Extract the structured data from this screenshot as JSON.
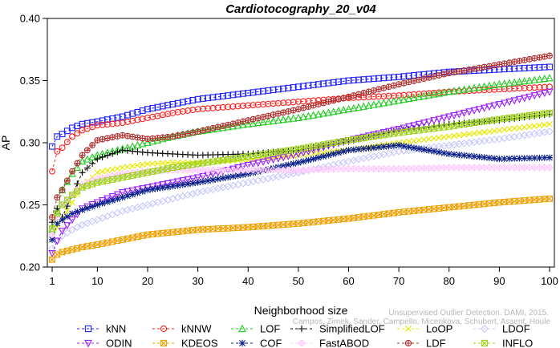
{
  "chart_data": {
    "type": "line",
    "title": "Cardiotocography_20_v04",
    "xlabel": "Neighborhood size",
    "ylabel": "AP",
    "xlim": [
      1,
      100
    ],
    "ylim": [
      0.2,
      0.4
    ],
    "xticks": [
      1,
      10,
      20,
      30,
      40,
      50,
      60,
      70,
      80,
      90,
      100
    ],
    "yticks": [
      0.2,
      0.25,
      0.3,
      0.35,
      0.4
    ],
    "x_knots": [
      1,
      2,
      3,
      5,
      7,
      10,
      15,
      20,
      25,
      30,
      40,
      50,
      60,
      70,
      80,
      90,
      100
    ],
    "legend_position": "bottom",
    "grid": false,
    "watermark": [
      "Unsupervised Outlier Detection. DAMI, 2015.",
      "Campos, Zimek, Sander, Campello, Micenkova, Schubert, Assent, Houle"
    ],
    "series": [
      {
        "name": "kNN",
        "color": "#1f1fff",
        "marker": "square",
        "dash": "3,3",
        "values": [
          0.297,
          0.305,
          0.307,
          0.312,
          0.315,
          0.317,
          0.321,
          0.327,
          0.331,
          0.335,
          0.34,
          0.345,
          0.35,
          0.353,
          0.357,
          0.359,
          0.361
        ]
      },
      {
        "name": "kNNW",
        "color": "#ff1f1f",
        "marker": "circle",
        "dash": "3,3",
        "values": [
          0.277,
          0.293,
          0.296,
          0.305,
          0.31,
          0.314,
          0.316,
          0.32,
          0.324,
          0.327,
          0.33,
          0.333,
          0.336,
          0.338,
          0.341,
          0.343,
          0.345
        ]
      },
      {
        "name": "LOF",
        "color": "#22cc22",
        "marker": "triangle",
        "dash": "3,3",
        "values": [
          0.23,
          0.245,
          0.262,
          0.275,
          0.285,
          0.29,
          0.295,
          0.3,
          0.305,
          0.309,
          0.315,
          0.32,
          0.327,
          0.334,
          0.341,
          0.347,
          0.352
        ]
      },
      {
        "name": "SimplifiedLOF",
        "color": "#000000",
        "marker": "plus",
        "dash": "3,3",
        "values": [
          0.236,
          0.247,
          0.24,
          0.258,
          0.276,
          0.287,
          0.294,
          0.292,
          0.291,
          0.29,
          0.291,
          0.294,
          0.301,
          0.31,
          0.315,
          0.318,
          0.323
        ]
      },
      {
        "name": "LoOP",
        "color": "#e8e800",
        "marker": "x",
        "dash": "3,3",
        "values": [
          0.222,
          0.232,
          0.238,
          0.252,
          0.265,
          0.276,
          0.28,
          0.283,
          0.284,
          0.284,
          0.286,
          0.29,
          0.294,
          0.3,
          0.305,
          0.31,
          0.315
        ]
      },
      {
        "name": "LDOF",
        "color": "#c8c8ff",
        "marker": "diamond",
        "dash": "3,3",
        "values": [
          0.215,
          0.221,
          0.225,
          0.23,
          0.234,
          0.238,
          0.245,
          0.25,
          0.255,
          0.26,
          0.268,
          0.276,
          0.285,
          0.293,
          0.298,
          0.303,
          0.309
        ]
      },
      {
        "name": "ODIN",
        "color": "#9a1fff",
        "marker": "triangle-down",
        "dash": "3,3",
        "values": [
          0.211,
          0.221,
          0.229,
          0.238,
          0.247,
          0.252,
          0.26,
          0.264,
          0.268,
          0.272,
          0.282,
          0.291,
          0.302,
          0.311,
          0.321,
          0.331,
          0.341
        ]
      },
      {
        "name": "KDEOS",
        "color": "#f0a000",
        "marker": "square-x",
        "dash": "3,3",
        "values": [
          0.206,
          0.21,
          0.212,
          0.214,
          0.216,
          0.218,
          0.222,
          0.226,
          0.228,
          0.23,
          0.232,
          0.235,
          0.239,
          0.244,
          0.248,
          0.252,
          0.255
        ]
      },
      {
        "name": "COF",
        "color": "#0a1f8a",
        "marker": "star",
        "dash": "3,3",
        "values": [
          0.222,
          0.235,
          0.238,
          0.243,
          0.246,
          0.25,
          0.256,
          0.262,
          0.265,
          0.268,
          0.275,
          0.284,
          0.294,
          0.298,
          0.291,
          0.287,
          0.288
        ]
      },
      {
        "name": "FastABOD",
        "color": "#ffc8ff",
        "marker": "diamond-plus",
        "dash": "3,3",
        "values": [
          0.226,
          0.24,
          0.25,
          0.258,
          0.266,
          0.271,
          0.275,
          0.277,
          0.278,
          0.278,
          0.278,
          0.278,
          0.279,
          0.279,
          0.28,
          0.28,
          0.28
        ]
      },
      {
        "name": "LDF",
        "color": "#b03030",
        "marker": "circle-plus",
        "dash": "3,3",
        "values": [
          0.24,
          0.256,
          0.262,
          0.277,
          0.29,
          0.302,
          0.306,
          0.303,
          0.305,
          0.309,
          0.318,
          0.327,
          0.337,
          0.347,
          0.356,
          0.363,
          0.37
        ]
      },
      {
        "name": "INFLO",
        "color": "#a0d21e",
        "marker": "square-x",
        "dash": "3,3",
        "values": [
          0.231,
          0.243,
          0.25,
          0.258,
          0.264,
          0.268,
          0.272,
          0.276,
          0.28,
          0.283,
          0.289,
          0.295,
          0.302,
          0.308,
          0.313,
          0.319,
          0.324
        ]
      }
    ]
  }
}
